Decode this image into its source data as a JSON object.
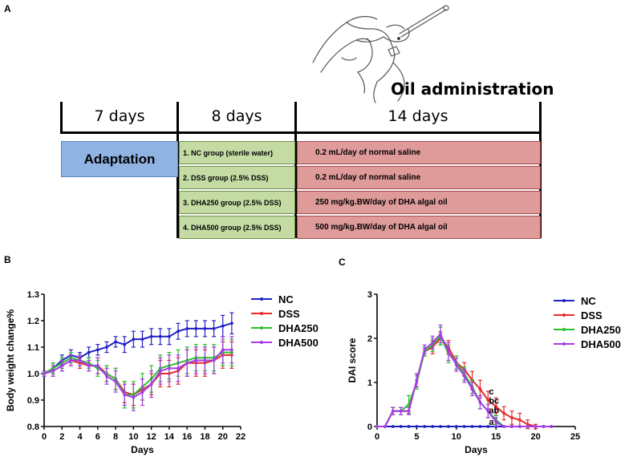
{
  "panels": {
    "a": "A",
    "b": "B",
    "c": "C"
  },
  "schematic": {
    "periods": [
      "7 days",
      "8 days",
      "14 days"
    ],
    "adaptation_label": "Adaptation",
    "oil_title": "Oil administration",
    "groups": [
      "1. NC group (sterile water)",
      "2. DSS group (2.5% DSS)",
      "3. DHA250 group (2.5% DSS)",
      "4. DHA500 group (2.5% DSS)"
    ],
    "treatments": [
      "0.2 mL/day of normal saline",
      "0.2 mL/day of normal saline",
      "250 mg/kg.BW/day of DHA algal oil",
      "500 mg/kg.BW/day  of DHA algal oil"
    ],
    "colors": {
      "adaptation": "#8fb4e3",
      "groups": "#c4dca4",
      "treatments": "#df9a9a"
    },
    "illustration": "hand-gavage-mouse-icon"
  },
  "chart_data": [
    {
      "type": "line",
      "title": "",
      "xlabel": "Days",
      "ylabel": "Body weight change%",
      "xlim": [
        0,
        22
      ],
      "ylim": [
        0.8,
        1.3
      ],
      "xticks": [
        "0",
        "2",
        "4",
        "6",
        "8",
        "10",
        "12",
        "14",
        "16",
        "18",
        "20",
        "22"
      ],
      "yticks": [
        "0.8",
        "0.9",
        "1.0",
        "1.1",
        "1.2",
        "1.3"
      ],
      "legend_position": "top-right",
      "x": [
        0,
        1,
        2,
        3,
        4,
        5,
        6,
        7,
        8,
        9,
        10,
        11,
        12,
        13,
        14,
        15,
        16,
        17,
        18,
        19,
        20,
        21
      ],
      "series": [
        {
          "name": "NC",
          "color": "#2121c8",
          "values": [
            1.0,
            1.02,
            1.05,
            1.07,
            1.06,
            1.08,
            1.09,
            1.1,
            1.12,
            1.11,
            1.13,
            1.13,
            1.14,
            1.14,
            1.14,
            1.16,
            1.17,
            1.17,
            1.17,
            1.17,
            1.18,
            1.19
          ],
          "error": [
            0.01,
            0.02,
            0.02,
            0.02,
            0.02,
            0.02,
            0.02,
            0.02,
            0.02,
            0.03,
            0.03,
            0.03,
            0.03,
            0.03,
            0.03,
            0.03,
            0.03,
            0.03,
            0.03,
            0.03,
            0.04,
            0.04
          ]
        },
        {
          "name": "DSS",
          "color": "#e52a2a",
          "values": [
            1.0,
            1.01,
            1.03,
            1.05,
            1.04,
            1.03,
            1.03,
            1.0,
            0.98,
            0.93,
            0.92,
            0.94,
            0.96,
            1.0,
            1.0,
            1.01,
            1.04,
            1.04,
            1.04,
            1.05,
            1.07,
            1.07
          ],
          "error": [
            0.01,
            0.02,
            0.02,
            0.02,
            0.02,
            0.02,
            0.03,
            0.03,
            0.04,
            0.04,
            0.04,
            0.04,
            0.04,
            0.05,
            0.05,
            0.05,
            0.05,
            0.05,
            0.05,
            0.05,
            0.05,
            0.05
          ]
        },
        {
          "name": "DHA250",
          "color": "#2bbf2b",
          "values": [
            1.0,
            1.02,
            1.04,
            1.06,
            1.05,
            1.04,
            1.02,
            1.0,
            0.98,
            0.92,
            0.92,
            0.95,
            0.98,
            1.02,
            1.03,
            1.04,
            1.05,
            1.06,
            1.06,
            1.06,
            1.08,
            1.08
          ],
          "error": [
            0.01,
            0.02,
            0.02,
            0.02,
            0.02,
            0.02,
            0.03,
            0.03,
            0.04,
            0.05,
            0.05,
            0.05,
            0.05,
            0.05,
            0.05,
            0.05,
            0.05,
            0.05,
            0.05,
            0.05,
            0.05,
            0.05
          ]
        },
        {
          "name": "DHA500",
          "color": "#a63be8",
          "values": [
            1.0,
            1.01,
            1.03,
            1.05,
            1.05,
            1.03,
            1.03,
            0.99,
            0.97,
            0.92,
            0.91,
            0.93,
            0.96,
            1.01,
            1.02,
            1.02,
            1.04,
            1.05,
            1.05,
            1.05,
            1.09,
            1.09
          ],
          "error": [
            0.01,
            0.02,
            0.02,
            0.02,
            0.02,
            0.02,
            0.03,
            0.03,
            0.04,
            0.04,
            0.05,
            0.05,
            0.05,
            0.05,
            0.05,
            0.05,
            0.05,
            0.05,
            0.05,
            0.05,
            0.05,
            0.05
          ]
        }
      ]
    },
    {
      "type": "line",
      "title": "",
      "xlabel": "Days",
      "ylabel": "DAI score",
      "xlim": [
        0,
        25
      ],
      "ylim": [
        0,
        3
      ],
      "xticks": [
        "0",
        "5",
        "10",
        "15",
        "20",
        "25"
      ],
      "yticks": [
        "0",
        "1",
        "2",
        "3"
      ],
      "legend_position": "top-right",
      "x": [
        0,
        1,
        2,
        3,
        4,
        5,
        6,
        7,
        8,
        9,
        10,
        11,
        12,
        13,
        14,
        15,
        16,
        17,
        18,
        19,
        20,
        21,
        22
      ],
      "annotations": [
        {
          "text": "c",
          "x": 14,
          "y": 0.73
        },
        {
          "text": "bc",
          "x": 14,
          "y": 0.52
        },
        {
          "text": "ab",
          "x": 14,
          "y": 0.3
        },
        {
          "text": "a",
          "x": 14,
          "y": 0.04
        }
      ],
      "series": [
        {
          "name": "NC",
          "color": "#2121c8",
          "values": [
            0,
            0,
            0,
            0,
            0,
            0,
            0,
            0,
            0,
            0,
            0,
            0,
            0,
            0,
            0,
            0,
            0,
            0,
            0,
            0,
            0,
            0,
            0
          ],
          "error": [
            0,
            0,
            0,
            0,
            0,
            0,
            0,
            0,
            0,
            0,
            0,
            0,
            0,
            0,
            0,
            0,
            0,
            0,
            0,
            0,
            0,
            0,
            0
          ]
        },
        {
          "name": "DSS",
          "color": "#e52a2a",
          "values": [
            0,
            0,
            0.35,
            0.35,
            0.35,
            1.05,
            1.7,
            1.8,
            2.0,
            1.8,
            1.45,
            1.3,
            1.05,
            0.85,
            0.6,
            0.45,
            0.3,
            0.2,
            0.15,
            0.05,
            0,
            0,
            0
          ],
          "error": [
            0,
            0,
            0.08,
            0.08,
            0.08,
            0.15,
            0.1,
            0.15,
            0.15,
            0.15,
            0.15,
            0.15,
            0.2,
            0.2,
            0.2,
            0.2,
            0.15,
            0.15,
            0.15,
            0.1,
            0.05,
            0,
            0
          ]
        },
        {
          "name": "DHA250",
          "color": "#2bbf2b",
          "values": [
            0,
            0,
            0.35,
            0.35,
            0.5,
            1.0,
            1.7,
            1.85,
            2.05,
            1.65,
            1.45,
            1.2,
            0.9,
            0.55,
            0.35,
            0.15,
            0,
            0,
            0,
            0,
            0,
            0,
            0
          ],
          "error": [
            0,
            0,
            0.08,
            0.08,
            0.2,
            0.15,
            0.1,
            0.15,
            0.2,
            0.2,
            0.15,
            0.15,
            0.15,
            0.15,
            0.15,
            0.1,
            0,
            0,
            0,
            0,
            0,
            0,
            0
          ]
        },
        {
          "name": "DHA500",
          "color": "#a63be8",
          "values": [
            0,
            0,
            0.35,
            0.35,
            0.35,
            1.05,
            1.75,
            1.9,
            2.1,
            1.7,
            1.4,
            1.15,
            0.85,
            0.55,
            0.35,
            0.1,
            0,
            0,
            0,
            0,
            0,
            0,
            0
          ],
          "error": [
            0,
            0,
            0.08,
            0.08,
            0.08,
            0.15,
            0.1,
            0.15,
            0.2,
            0.2,
            0.15,
            0.15,
            0.15,
            0.15,
            0.15,
            0.1,
            0,
            0,
            0,
            0,
            0,
            0,
            0
          ]
        }
      ]
    }
  ]
}
